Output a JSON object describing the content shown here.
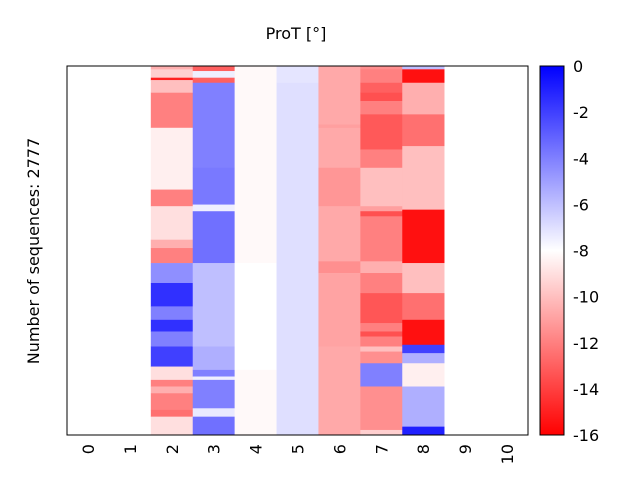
{
  "chart_data": {
    "type": "heatmap",
    "title": "ProT [°]",
    "ylabel": "Number of sequences: 2777",
    "xlabel": "",
    "n_sequences": 2777,
    "x_categories": [
      "0",
      "1",
      "2",
      "3",
      "4",
      "5",
      "6",
      "7",
      "8",
      "9",
      "10"
    ],
    "colorbar": {
      "min": -16,
      "max": 0,
      "ticks": [
        "0",
        "-2",
        "-4",
        "-6",
        "-8",
        "-10",
        "-12",
        "-14",
        "-16"
      ],
      "colormap": "bwr",
      "colors": {
        "low": "#ff0000",
        "mid": "#ffffff",
        "high": "#0000ff"
      }
    },
    "columns": [
      {
        "x": "0",
        "segments": []
      },
      {
        "x": "1",
        "segments": []
      },
      {
        "x": "2",
        "segments": [
          [
            0,
            25,
            -10.5
          ],
          [
            25,
            88,
            -9.5
          ],
          [
            88,
            106,
            -15
          ],
          [
            106,
            201,
            -10
          ],
          [
            201,
            465,
            -12
          ],
          [
            465,
            930,
            -8.5
          ],
          [
            930,
            1055,
            -12
          ],
          [
            1055,
            1307,
            -9
          ],
          [
            1307,
            1370,
            -10.5
          ],
          [
            1370,
            1483,
            -12
          ],
          [
            1483,
            1633,
            -4.5
          ],
          [
            1633,
            1809,
            -1.5
          ],
          [
            1809,
            1910,
            -4
          ],
          [
            1910,
            1998,
            -1.5
          ],
          [
            1998,
            2111,
            -4
          ],
          [
            2111,
            2262,
            -2
          ],
          [
            2262,
            2362,
            -9
          ],
          [
            2362,
            2412,
            -12
          ],
          [
            2412,
            2463,
            -10.5
          ],
          [
            2463,
            2588,
            -12
          ],
          [
            2588,
            2639,
            -12.5
          ],
          [
            2639,
            2777,
            -9
          ]
        ]
      },
      {
        "x": "3",
        "segments": [
          [
            0,
            38,
            -13
          ],
          [
            38,
            88,
            -7.5
          ],
          [
            88,
            126,
            -13
          ],
          [
            126,
            766,
            -4
          ],
          [
            766,
            1043,
            -3.8
          ],
          [
            1043,
            1093,
            -7.5
          ],
          [
            1093,
            1483,
            -3.5
          ],
          [
            1483,
            2111,
            -6
          ],
          [
            2111,
            2287,
            -5.5
          ],
          [
            2287,
            2337,
            -4
          ],
          [
            2337,
            2362,
            -7.5
          ],
          [
            2362,
            2576,
            -4
          ],
          [
            2576,
            2639,
            -7.3
          ],
          [
            2639,
            2777,
            -3.5
          ]
        ]
      },
      {
        "x": "4",
        "segments": [
          [
            0,
            1483,
            -8.2
          ],
          [
            1483,
            2287,
            -8
          ],
          [
            2287,
            2777,
            -8.2
          ]
        ]
      },
      {
        "x": "5",
        "segments": [
          [
            0,
            126,
            -7.2
          ],
          [
            126,
            2777,
            -7
          ]
        ]
      },
      {
        "x": "6",
        "segments": [
          [
            0,
            440,
            -10.7
          ],
          [
            440,
            465,
            -11
          ],
          [
            465,
            766,
            -10.7
          ],
          [
            766,
            1055,
            -11.3
          ],
          [
            1055,
            1470,
            -10.7
          ],
          [
            1470,
            1558,
            -11.5
          ],
          [
            1558,
            2111,
            -10.9
          ],
          [
            2111,
            2777,
            -10.7
          ]
        ]
      },
      {
        "x": "7",
        "segments": [
          [
            0,
            25,
            -11.5
          ],
          [
            25,
            126,
            -12
          ],
          [
            126,
            201,
            -13
          ],
          [
            201,
            264,
            -13.5
          ],
          [
            264,
            364,
            -12
          ],
          [
            364,
            628,
            -13.2
          ],
          [
            628,
            766,
            -12
          ],
          [
            766,
            1055,
            -10
          ],
          [
            1055,
            1093,
            -11
          ],
          [
            1093,
            1131,
            -13.5
          ],
          [
            1131,
            1470,
            -12
          ],
          [
            1470,
            1558,
            -10.5
          ],
          [
            1558,
            1709,
            -12
          ],
          [
            1709,
            1935,
            -13.3
          ],
          [
            1935,
            1998,
            -12
          ],
          [
            1998,
            2036,
            -13.5
          ],
          [
            2036,
            2111,
            -12
          ],
          [
            2111,
            2149,
            -10
          ],
          [
            2149,
            2237,
            -11.5
          ],
          [
            2237,
            2412,
            -4
          ],
          [
            2412,
            2739,
            -11.5
          ],
          [
            2739,
            2777,
            -9.5
          ]
        ]
      },
      {
        "x": "8",
        "segments": [
          [
            0,
            25,
            -6
          ],
          [
            25,
            126,
            -15.5
          ],
          [
            126,
            364,
            -10.5
          ],
          [
            364,
            603,
            -12.5
          ],
          [
            603,
            1081,
            -10
          ],
          [
            1081,
            1483,
            -15.5
          ],
          [
            1483,
            1709,
            -10
          ],
          [
            1709,
            1910,
            -12.5
          ],
          [
            1910,
            2098,
            -15.5
          ],
          [
            2098,
            2161,
            -2
          ],
          [
            2161,
            2237,
            -5.5
          ],
          [
            2237,
            2412,
            -8.5
          ],
          [
            2412,
            2714,
            -5.5
          ],
          [
            2714,
            2777,
            -1
          ]
        ]
      },
      {
        "x": "9",
        "segments": []
      },
      {
        "x": "10",
        "segments": []
      }
    ]
  }
}
